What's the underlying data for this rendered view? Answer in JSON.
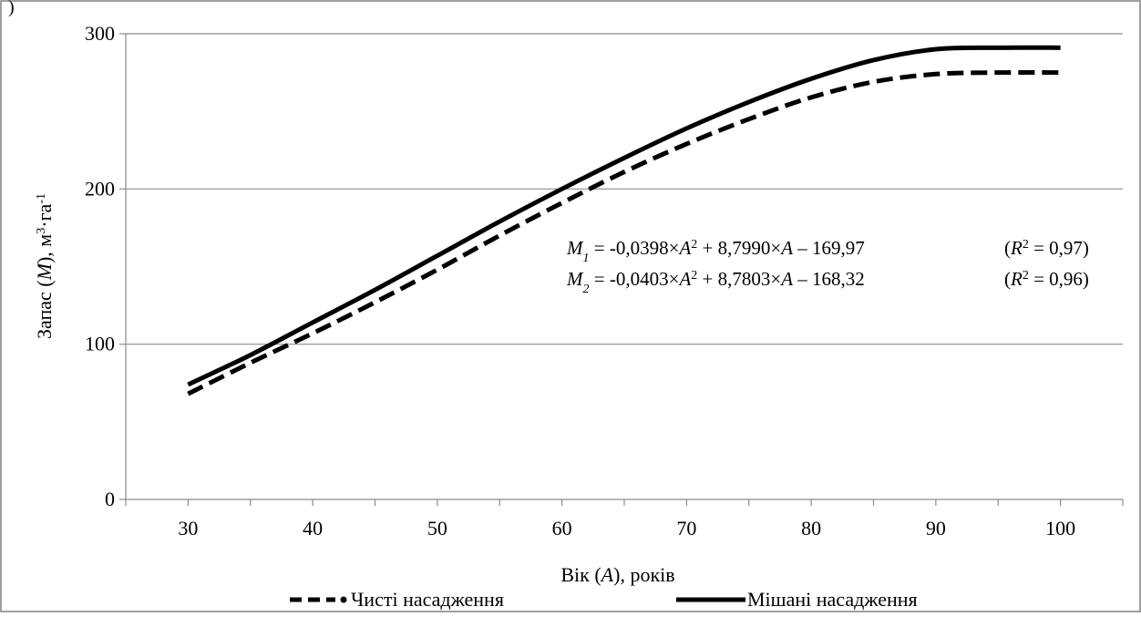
{
  "chart_data": {
    "type": "line",
    "corner_mark": ")",
    "xlabel": {
      "prefix": "Вік (",
      "var": "A",
      "suffix": "), років"
    },
    "ylabel": {
      "prefix": "Запас (",
      "var": "M",
      "mid": "), м",
      "sup1": "3",
      "mid2": "·га",
      "sup2": "-1"
    },
    "xlim": [
      25,
      105
    ],
    "ylim": [
      0,
      300
    ],
    "x_ticks": [
      30,
      40,
      50,
      60,
      70,
      80,
      90,
      100
    ],
    "x_tick_labels": [
      "30",
      "40",
      "50",
      "60",
      "70",
      "80",
      "90",
      "100"
    ],
    "y_ticks": [
      0,
      100,
      200,
      300
    ],
    "y_tick_labels": [
      "0",
      "100",
      "200",
      "300"
    ],
    "grid": "horizontal",
    "legend_position": "bottom",
    "series": [
      {
        "name": "Чисті насадження",
        "style": "dashed",
        "color": "#000000",
        "x": [
          30,
          35,
          40,
          45,
          50,
          55,
          60,
          65,
          70,
          75,
          80,
          85,
          90,
          95,
          100
        ],
        "y": [
          68,
          88,
          107,
          127,
          148,
          170,
          191,
          211,
          229,
          245,
          259,
          269,
          274,
          275,
          275
        ]
      },
      {
        "name": "Мішані насадження",
        "style": "solid",
        "color": "#000000",
        "x": [
          30,
          35,
          40,
          45,
          50,
          55,
          60,
          65,
          70,
          75,
          80,
          85,
          90,
          95,
          100
        ],
        "y": [
          74,
          93,
          114,
          135,
          157,
          179,
          200,
          220,
          239,
          256,
          271,
          283,
          290,
          291,
          291
        ]
      }
    ],
    "annotations": [
      {
        "sym": "M",
        "sub": "1",
        "t1": " = -0,0398×",
        "var1": "A",
        "sup": "2",
        "t2": " + 8,7990×",
        "var2": "A",
        "t3": " – 169,97",
        "r_open": "(",
        "r_var": "R",
        "r_sup": "2",
        "r_val": " = 0,97)"
      },
      {
        "sym": "M",
        "sub": "2",
        "t1": " = -0,0403×",
        "var1": "A",
        "sup": "2",
        "t2": " + 8,7803×",
        "var2": "A",
        "t3": " – 168,32",
        "r_open": "(",
        "r_var": "R",
        "r_sup": "2",
        "r_val": " = 0,96)"
      }
    ]
  }
}
